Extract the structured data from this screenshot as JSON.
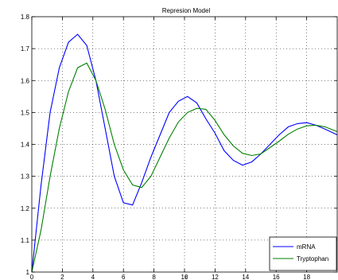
{
  "chart_data": {
    "type": "line",
    "title": "Represion Model",
    "xlabel": "t",
    "ylabel": "",
    "xlim": [
      0,
      20
    ],
    "ylim": [
      1,
      1.8
    ],
    "xticks": [
      "0",
      "2",
      "4",
      "6",
      "8",
      "10",
      "12",
      "14",
      "16",
      "18"
    ],
    "yticks": [
      "1",
      "1.1",
      "1.2",
      "1.3",
      "1.4",
      "1.5",
      "1.6",
      "1.7",
      "1.8"
    ],
    "grid": true,
    "legend_position": "bottom-right",
    "series": [
      {
        "name": "mRNA",
        "color": "#0000ff",
        "x": [
          0,
          0.6,
          1.2,
          1.8,
          2.4,
          3.0,
          3.6,
          4.2,
          4.8,
          5.4,
          6.0,
          6.6,
          7.2,
          7.8,
          8.4,
          9.0,
          9.6,
          10.2,
          10.8,
          11.4,
          12.0,
          12.6,
          13.2,
          13.8,
          14.4,
          15.0,
          15.6,
          16.2,
          16.8,
          17.4,
          18.0,
          18.6,
          19.2,
          20.0
        ],
        "y": [
          1.0,
          1.27,
          1.5,
          1.64,
          1.72,
          1.745,
          1.71,
          1.6,
          1.45,
          1.3,
          1.217,
          1.21,
          1.28,
          1.36,
          1.43,
          1.5,
          1.535,
          1.55,
          1.53,
          1.48,
          1.435,
          1.38,
          1.35,
          1.335,
          1.345,
          1.37,
          1.4,
          1.43,
          1.455,
          1.465,
          1.468,
          1.46,
          1.448,
          1.43
        ]
      },
      {
        "name": "Tryptophan",
        "color": "#008000",
        "x": [
          0,
          0.6,
          1.2,
          1.8,
          2.4,
          3.0,
          3.6,
          4.2,
          4.8,
          5.4,
          6.0,
          6.6,
          7.2,
          7.8,
          8.4,
          9.0,
          9.6,
          10.2,
          10.8,
          11.4,
          12.0,
          12.6,
          13.2,
          13.8,
          14.4,
          15.0,
          15.6,
          16.2,
          16.8,
          17.4,
          18.0,
          18.6,
          19.2,
          20.0
        ],
        "y": [
          1.0,
          1.13,
          1.3,
          1.45,
          1.565,
          1.64,
          1.655,
          1.6,
          1.51,
          1.4,
          1.32,
          1.273,
          1.265,
          1.3,
          1.36,
          1.42,
          1.47,
          1.5,
          1.513,
          1.51,
          1.475,
          1.43,
          1.395,
          1.372,
          1.365,
          1.37,
          1.39,
          1.41,
          1.432,
          1.448,
          1.458,
          1.46,
          1.455,
          1.44
        ]
      }
    ]
  }
}
